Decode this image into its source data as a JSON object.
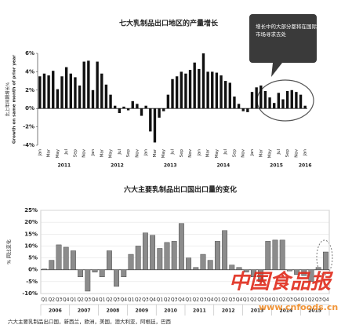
{
  "chart_data": [
    {
      "type": "bar",
      "title": "七大乳制品出口地区的产量增长",
      "ylabel": "比上年同期增长%",
      "ylabel_en": "Growth on same month of prior year",
      "annotation": [
        "增长中的大部分都将在国际",
        "市场寻求去处"
      ],
      "categories": [
        "Jan",
        null,
        "Mar",
        null,
        "May",
        null,
        "Jul",
        null,
        "Sep",
        null,
        "Nov",
        null,
        "Jan",
        null,
        "Mar",
        null,
        "May",
        null,
        "Jul",
        null,
        "Sep",
        null,
        "Nov",
        null,
        "Jan",
        null,
        "Mar",
        null,
        "May",
        null,
        "Jul",
        null,
        "Sep",
        null,
        "Nov",
        null,
        "Jan",
        null,
        "Mar",
        null,
        "May",
        null,
        "Jul",
        null,
        "Sep",
        null,
        "Nov",
        null,
        "Jan",
        null,
        "Mar",
        null,
        "May",
        null,
        "Jul",
        null,
        "Sep",
        null,
        "Nov",
        null,
        "Jan"
      ],
      "group_size": 12,
      "groups": [
        "2011",
        "2012",
        "2013",
        "2014",
        "2015",
        "2016"
      ],
      "values": [
        3.5,
        3.8,
        3.6,
        4.1,
        2.1,
        3.5,
        4.5,
        3.8,
        3.4,
        2.5,
        5.1,
        5.2,
        2.0,
        5.1,
        3.8,
        2.6,
        1.5,
        0.3,
        -0.5,
        0.2,
        -0.2,
        0.8,
        0.5,
        -0.8,
        0.3,
        -2.5,
        -3.7,
        -1.0,
        -0.3,
        1.5,
        3.2,
        3.5,
        4.0,
        3.8,
        4.2,
        5.0,
        4.3,
        6.0,
        4.0,
        4.0,
        3.9,
        3.6,
        3.0,
        2.8,
        1.3,
        0.5,
        -0.3,
        -0.4,
        1.8,
        2.3,
        2.5,
        1.9,
        1.2,
        0.6,
        1.7,
        1.0,
        1.9,
        2.0,
        1.8,
        1.5,
        0.3
      ],
      "color": "#111111",
      "ylim": [
        -4,
        6
      ],
      "yticks": [
        {
          "value": -4,
          "label": "-4%"
        },
        {
          "value": -2,
          "label": "-2%"
        },
        {
          "value": 0,
          "label": "0%"
        },
        {
          "value": 2,
          "label": "2%"
        },
        {
          "value": 4,
          "label": "4%"
        },
        {
          "value": 6,
          "label": "6%"
        }
      ]
    },
    {
      "type": "bar",
      "title": "六大主要乳制品出口国出口量的变化",
      "ylabel": "% 同比变化",
      "note": "六大主要乳制品出口国，新西兰，欧洲，美国，澳大利亚，阿根廷，巴西",
      "categories": [
        "Q1",
        "Q2",
        "Q3",
        "Q4",
        "Q1",
        "Q2",
        "Q3",
        "Q4",
        "Q1",
        "Q2",
        "Q3",
        "Q4",
        "Q1",
        "Q2",
        "Q3",
        "Q4",
        "Q1",
        "Q2",
        "Q3",
        "Q4",
        "Q1",
        "Q2",
        "Q3",
        "Q4",
        "Q1",
        "Q2",
        "Q3",
        "Q4",
        "Q1",
        "Q2",
        "Q3",
        "Q4",
        "Q1",
        "Q2",
        "Q3",
        "Q4",
        "Q1",
        "Q2",
        "Q3",
        "Q4"
      ],
      "group_size": 4,
      "groups": [
        "2006",
        "2007",
        "2008",
        "2009",
        "2010",
        "2011",
        "2012",
        "2013",
        "2014",
        "2015"
      ],
      "values": [
        0.3,
        4,
        10.5,
        9.5,
        8,
        -3,
        -9,
        -1,
        -3,
        8,
        -7,
        -3,
        6.5,
        10,
        15.5,
        14.5,
        9,
        11.5,
        12,
        19.5,
        5,
        1,
        6.5,
        4,
        12,
        16.5,
        2,
        1,
        -1,
        -3,
        -5,
        12,
        12.5,
        12.5,
        -0.5,
        -2,
        -2.5,
        -5,
        1,
        7.5
      ],
      "color": "#8c8c8c",
      "ylim": [
        -10,
        25
      ],
      "yticks": [
        {
          "value": -10,
          "label": "-10%"
        },
        {
          "value": -5,
          "label": "-5%"
        },
        {
          "value": 0,
          "label": "0%"
        },
        {
          "value": 5,
          "label": "5%"
        },
        {
          "value": 10,
          "label": "10%"
        },
        {
          "value": 15,
          "label": "15%"
        },
        {
          "value": 20,
          "label": "20%"
        },
        {
          "value": 25,
          "label": "25%"
        }
      ]
    }
  ],
  "watermark": {
    "title": "中国食品报",
    "url": "www.cnfoods.cn"
  }
}
